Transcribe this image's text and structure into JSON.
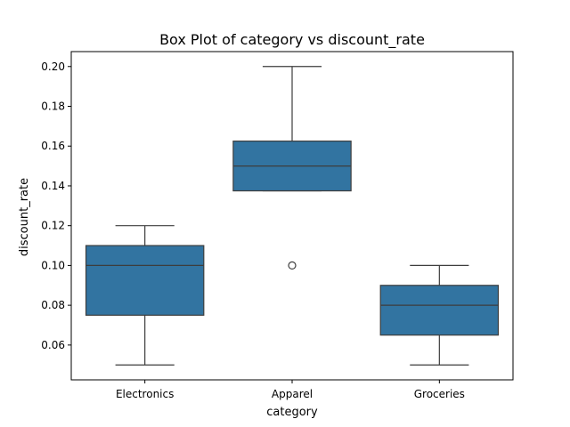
{
  "chart_data": {
    "type": "box",
    "title": "Box Plot of category vs discount_rate",
    "xlabel": "category",
    "ylabel": "discount_rate",
    "categories": [
      "Electronics",
      "Apparel",
      "Groceries"
    ],
    "ylim": [
      0.0425,
      0.2075
    ],
    "yticks": [
      0.06,
      0.08,
      0.1,
      0.12,
      0.14,
      0.16,
      0.18,
      0.2
    ],
    "ytick_labels": [
      "0.06",
      "0.08",
      "0.10",
      "0.12",
      "0.14",
      "0.16",
      "0.18",
      "0.20"
    ],
    "box_color": "#3274a1",
    "line_color": "#3d3d3d",
    "boxes": [
      {
        "category": "Electronics",
        "whisker_low": 0.05,
        "q1": 0.075,
        "median": 0.1,
        "q3": 0.11,
        "whisker_high": 0.12,
        "outliers": []
      },
      {
        "category": "Apparel",
        "whisker_low": 0.1375,
        "q1": 0.1375,
        "median": 0.15,
        "q3": 0.1625,
        "whisker_high": 0.2,
        "outliers": [
          0.1
        ]
      },
      {
        "category": "Groceries",
        "whisker_low": 0.05,
        "q1": 0.065,
        "median": 0.08,
        "q3": 0.09,
        "whisker_high": 0.1,
        "outliers": []
      }
    ],
    "grid": false,
    "legend": "none"
  }
}
